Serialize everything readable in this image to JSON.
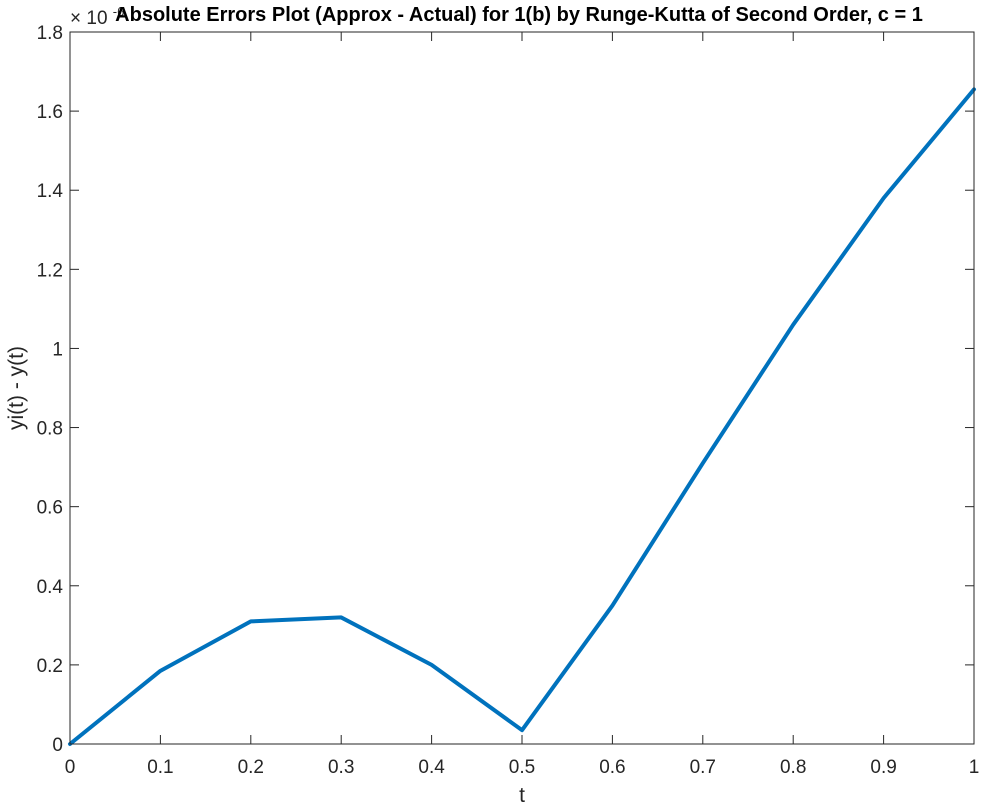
{
  "chart_data": {
    "type": "line",
    "title": "Absolute Errors Plot (Approx - Actual) for 1(b) by Runge-Kutta of Second Order, c = 1",
    "xlabel": "t",
    "ylabel": "yi(t) - y(t)",
    "y_exponent_base": "× 10",
    "y_exponent_power": "-6",
    "xlim": [
      0,
      1
    ],
    "ylim": [
      0,
      1.8
    ],
    "x_ticks": [
      "0",
      "0.1",
      "0.2",
      "0.3",
      "0.4",
      "0.5",
      "0.6",
      "0.7",
      "0.8",
      "0.9",
      "1"
    ],
    "y_ticks": [
      "0",
      "0.2",
      "0.4",
      "0.6",
      "0.8",
      "1",
      "1.2",
      "1.4",
      "1.6",
      "1.8"
    ],
    "grid": false,
    "line_color": "#0072bd",
    "series": [
      {
        "x": [
          0,
          0.1,
          0.2,
          0.3,
          0.4,
          0.5,
          0.6,
          0.7,
          0.8,
          0.9,
          1.0
        ],
        "values": [
          0,
          0.185,
          0.31,
          0.32,
          0.2,
          0.035,
          0.35,
          0.71,
          1.06,
          1.38,
          1.655
        ]
      }
    ]
  }
}
